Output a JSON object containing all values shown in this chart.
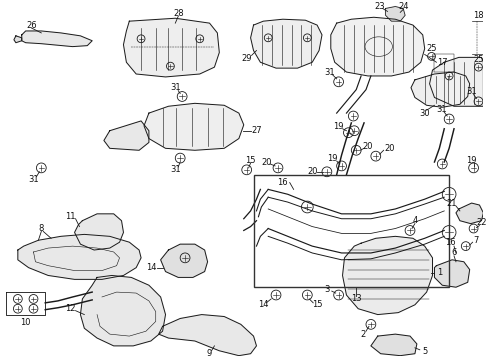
{
  "bg_color": "#ffffff",
  "line_color": "#1a1a1a",
  "text_color": "#111111",
  "fig_width": 4.9,
  "fig_height": 3.6,
  "dpi": 100,
  "label_fontsize": 6.0,
  "lw": 0.7
}
